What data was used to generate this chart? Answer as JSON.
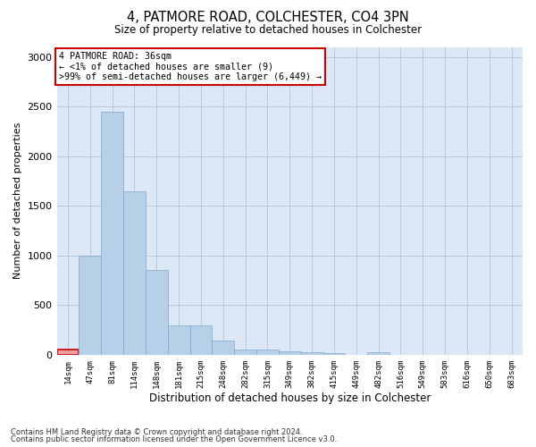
{
  "title": "4, PATMORE ROAD, COLCHESTER, CO4 3PN",
  "subtitle": "Size of property relative to detached houses in Colchester",
  "xlabel": "Distribution of detached houses by size in Colchester",
  "ylabel": "Number of detached properties",
  "bar_color": "#b8cfe8",
  "bar_edge_color": "#7aaad0",
  "highlight_color": "#cc0000",
  "highlight_bar_color": "#e8a0a0",
  "background_color": "#ffffff",
  "plot_bg_color": "#dce8f5",
  "grid_color": "#b0c4d8",
  "categories": [
    "14sqm",
    "47sqm",
    "81sqm",
    "114sqm",
    "148sqm",
    "181sqm",
    "215sqm",
    "248sqm",
    "282sqm",
    "315sqm",
    "349sqm",
    "382sqm",
    "415sqm",
    "449sqm",
    "482sqm",
    "516sqm",
    "549sqm",
    "583sqm",
    "616sqm",
    "650sqm",
    "683sqm"
  ],
  "values": [
    50,
    1000,
    2450,
    1650,
    850,
    300,
    300,
    140,
    55,
    50,
    35,
    25,
    20,
    0,
    25,
    0,
    0,
    0,
    0,
    0,
    0
  ],
  "ylim": [
    0,
    3100
  ],
  "yticks": [
    0,
    500,
    1000,
    1500,
    2000,
    2500,
    3000
  ],
  "highlight_bar_index": 0,
  "annotation_text": "4 PATMORE ROAD: 36sqm\n← <1% of detached houses are smaller (9)\n>99% of semi-detached houses are larger (6,449) →",
  "annotation_box_color": "#ffffff",
  "annotation_box_edge_color": "#cc0000",
  "footer_line1": "Contains HM Land Registry data © Crown copyright and database right 2024.",
  "footer_line2": "Contains public sector information licensed under the Open Government Licence v3.0."
}
